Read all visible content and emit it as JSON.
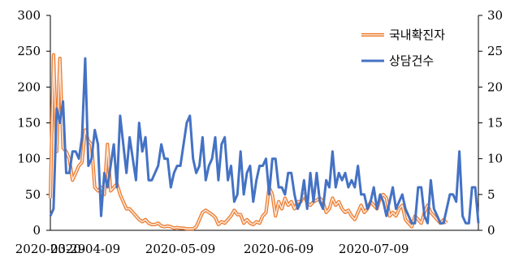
{
  "chart_data": {
    "type": "line",
    "title": "",
    "xlabel": "",
    "ylabel_left": "",
    "ylabel_right": "",
    "x_tick_labels": [
      "2020-03-29",
      "2020-04-09",
      "2020-05-09",
      "2020-06-09",
      "2020-07-09"
    ],
    "x_tick_index": [
      0,
      11,
      41,
      72,
      102
    ],
    "left_axis": {
      "ylim": [
        0,
        300
      ],
      "ticks": [
        0,
        50,
        100,
        150,
        200,
        250,
        300
      ]
    },
    "right_axis": {
      "ylim": [
        0,
        30
      ],
      "ticks": [
        0,
        5,
        10,
        15,
        20,
        25,
        30
      ]
    },
    "grid": false,
    "legend_position": "top-right",
    "series": [
      {
        "name": "국내확진자",
        "axis": "left",
        "color": "#F4B183",
        "outline": "#ED7D31",
        "style": "double-line",
        "values": [
          45,
          245,
          110,
          240,
          115,
          110,
          100,
          70,
          80,
          90,
          95,
          140,
          125,
          120,
          60,
          55,
          60,
          50,
          120,
          55,
          60,
          65,
          50,
          40,
          30,
          30,
          25,
          20,
          15,
          12,
          15,
          10,
          8,
          8,
          10,
          6,
          5,
          6,
          5,
          3,
          4,
          3,
          3,
          2,
          2,
          2,
          5,
          15,
          25,
          28,
          25,
          22,
          18,
          8,
          12,
          10,
          15,
          20,
          28,
          22,
          22,
          10,
          15,
          10,
          8,
          12,
          10,
          20,
          25,
          60,
          50,
          20,
          40,
          30,
          45,
          35,
          40,
          30,
          40,
          40,
          50,
          38,
          35,
          40,
          42,
          45,
          40,
          25,
          30,
          45,
          35,
          40,
          30,
          25,
          28,
          20,
          15,
          25,
          35,
          25,
          30,
          40,
          35,
          30,
          45,
          50,
          45,
          20,
          25,
          20,
          30,
          35,
          15,
          10,
          5,
          20,
          15,
          10,
          25,
          35,
          25,
          20,
          15,
          10,
          15,
          10
        ]
      },
      {
        "name": "상담건수",
        "axis": "right",
        "color": "#4472C4",
        "style": "line",
        "values": [
          2,
          3,
          17,
          15,
          18,
          8,
          8,
          11,
          11,
          10,
          13,
          24,
          9,
          10,
          14,
          12,
          2,
          8,
          6,
          9,
          12,
          6,
          16,
          12,
          8,
          13,
          10,
          7,
          15,
          11,
          13,
          7,
          7,
          8,
          9,
          12,
          10,
          10,
          6,
          8,
          9,
          9,
          12,
          15,
          16,
          10,
          8,
          9,
          13,
          7,
          9,
          10,
          13,
          7,
          12,
          13,
          7,
          9,
          4,
          5,
          11,
          5,
          8,
          9,
          4,
          7,
          9,
          9,
          10,
          5,
          10,
          10,
          6,
          6,
          5,
          8,
          8,
          5,
          3,
          4,
          7,
          3,
          8,
          4,
          8,
          4,
          3,
          7,
          6,
          11,
          6,
          8,
          7,
          8,
          6,
          7,
          6,
          9,
          5,
          5,
          3,
          4,
          6,
          3,
          5,
          4,
          2,
          4,
          6,
          3,
          4,
          5,
          3,
          2,
          1,
          1,
          6,
          6,
          2,
          1,
          7,
          3,
          2,
          1,
          1,
          3,
          5,
          5,
          4,
          11,
          2,
          1,
          1,
          6,
          6,
          1
        ]
      }
    ]
  }
}
